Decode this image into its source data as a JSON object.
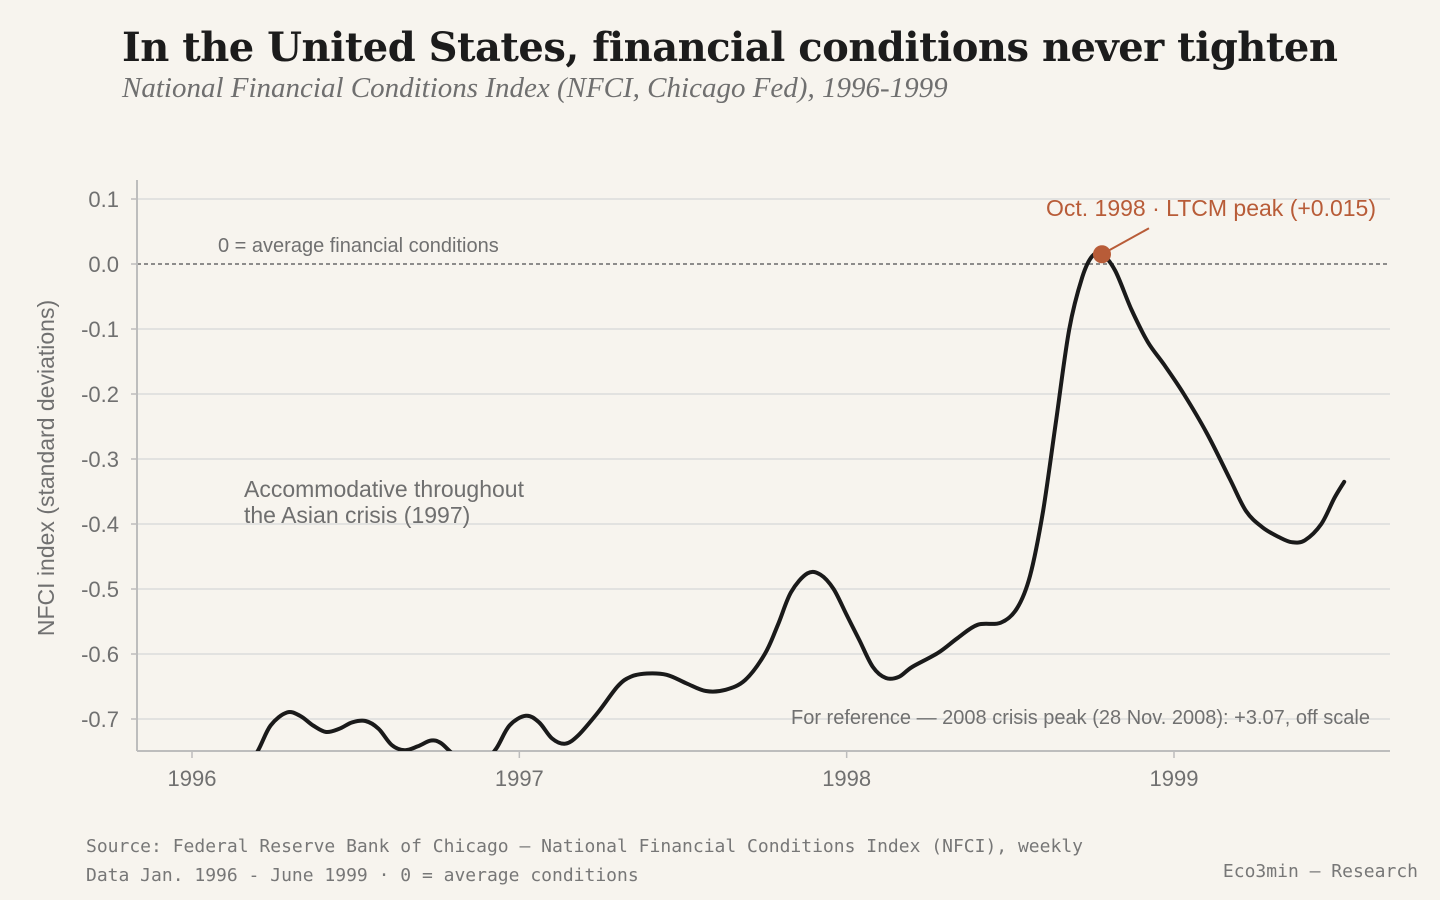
{
  "header": {
    "title": "In the United States, financial conditions never tighten",
    "subtitle": "National Financial Conditions Index (NFCI, Chicago Fed), 1996-1999"
  },
  "footer": {
    "source_line1": "Source: Federal Reserve Bank of Chicago — National Financial Conditions Index (NFCI), weekly",
    "source_line2": "Data Jan. 1996 - June 1999 · 0 = average conditions",
    "brand": "Eco3min — Research"
  },
  "colors": {
    "background": "#f7f4ee",
    "line": "#1a1a1a",
    "accent": "#b85c38",
    "grid": "#dcdcdc",
    "muted_text": "#707070"
  },
  "chart_data": {
    "type": "line",
    "title": "In the United States, financial conditions never tighten",
    "subtitle": "National Financial Conditions Index (NFCI, Chicago Fed), 1996-1999",
    "xlabel": "",
    "ylabel": "NFCI index (standard deviations)",
    "xlim": [
      1995.83,
      1999.65
    ],
    "ylim": [
      -0.75,
      0.13
    ],
    "x_ticks": [
      1996,
      1997,
      1998,
      1999
    ],
    "x_tick_labels": [
      "1996",
      "1997",
      "1998",
      "1999"
    ],
    "y_ticks": [
      0.1,
      0.0,
      -0.1,
      -0.2,
      -0.3,
      -0.4,
      -0.5,
      -0.6,
      -0.7
    ],
    "y_tick_labels": [
      "0.1",
      "0.0",
      "-0.1",
      "-0.2",
      "-0.3",
      "-0.4",
      "-0.5",
      "-0.6",
      "-0.7"
    ],
    "grid": "horizontal",
    "series": [
      {
        "points": [
          [
            1996.0,
            -0.77
          ],
          [
            1996.08,
            -0.79
          ],
          [
            1996.14,
            -0.8
          ],
          [
            1996.2,
            -0.75
          ],
          [
            1996.24,
            -0.71
          ],
          [
            1996.29,
            -0.69
          ],
          [
            1996.33,
            -0.695
          ],
          [
            1996.37,
            -0.71
          ],
          [
            1996.41,
            -0.72
          ],
          [
            1996.45,
            -0.715
          ],
          [
            1996.49,
            -0.705
          ],
          [
            1996.53,
            -0.703
          ],
          [
            1996.57,
            -0.715
          ],
          [
            1996.61,
            -0.74
          ],
          [
            1996.65,
            -0.748
          ],
          [
            1996.69,
            -0.742
          ],
          [
            1996.73,
            -0.733
          ],
          [
            1996.76,
            -0.737
          ],
          [
            1996.8,
            -0.755
          ],
          [
            1996.85,
            -0.77
          ],
          [
            1996.89,
            -0.768
          ],
          [
            1996.93,
            -0.745
          ],
          [
            1996.97,
            -0.71
          ],
          [
            1997.02,
            -0.695
          ],
          [
            1997.06,
            -0.705
          ],
          [
            1997.1,
            -0.73
          ],
          [
            1997.14,
            -0.738
          ],
          [
            1997.18,
            -0.725
          ],
          [
            1997.24,
            -0.69
          ],
          [
            1997.3,
            -0.65
          ],
          [
            1997.34,
            -0.635
          ],
          [
            1997.39,
            -0.63
          ],
          [
            1997.45,
            -0.632
          ],
          [
            1997.51,
            -0.645
          ],
          [
            1997.57,
            -0.657
          ],
          [
            1997.63,
            -0.655
          ],
          [
            1997.69,
            -0.64
          ],
          [
            1997.75,
            -0.6
          ],
          [
            1997.79,
            -0.555
          ],
          [
            1997.83,
            -0.505
          ],
          [
            1997.88,
            -0.476
          ],
          [
            1997.92,
            -0.478
          ],
          [
            1997.96,
            -0.5
          ],
          [
            1998.0,
            -0.54
          ],
          [
            1998.04,
            -0.58
          ],
          [
            1998.08,
            -0.62
          ],
          [
            1998.12,
            -0.637
          ],
          [
            1998.16,
            -0.635
          ],
          [
            1998.2,
            -0.62
          ],
          [
            1998.28,
            -0.598
          ],
          [
            1998.34,
            -0.575
          ],
          [
            1998.4,
            -0.555
          ],
          [
            1998.47,
            -0.552
          ],
          [
            1998.52,
            -0.53
          ],
          [
            1998.56,
            -0.48
          ],
          [
            1998.6,
            -0.38
          ],
          [
            1998.64,
            -0.24
          ],
          [
            1998.68,
            -0.1
          ],
          [
            1998.72,
            -0.02
          ],
          [
            1998.75,
            0.012
          ],
          [
            1998.78,
            0.015
          ],
          [
            1998.82,
            -0.01
          ],
          [
            1998.87,
            -0.07
          ],
          [
            1998.92,
            -0.12
          ],
          [
            1998.97,
            -0.155
          ],
          [
            1999.03,
            -0.2
          ],
          [
            1999.1,
            -0.26
          ],
          [
            1999.17,
            -0.33
          ],
          [
            1999.22,
            -0.38
          ],
          [
            1999.27,
            -0.405
          ],
          [
            1999.32,
            -0.42
          ],
          [
            1999.36,
            -0.428
          ],
          [
            1999.4,
            -0.425
          ],
          [
            1999.45,
            -0.4
          ],
          [
            1999.49,
            -0.36
          ],
          [
            1999.52,
            -0.335
          ]
        ]
      }
    ],
    "reference_line": {
      "y": 0.0,
      "label": "0 = average financial conditions"
    },
    "annotations": {
      "peak": {
        "x": 1998.78,
        "y": 0.015,
        "label": "Oct. 1998 · LTCM peak (+0.015)"
      },
      "asian_crisis": {
        "line1": "Accommodative throughout",
        "line2": "the Asian crisis (1997)"
      },
      "reference_2008": "For reference — 2008 crisis peak (28 Nov. 2008): +3.07, off scale"
    }
  }
}
